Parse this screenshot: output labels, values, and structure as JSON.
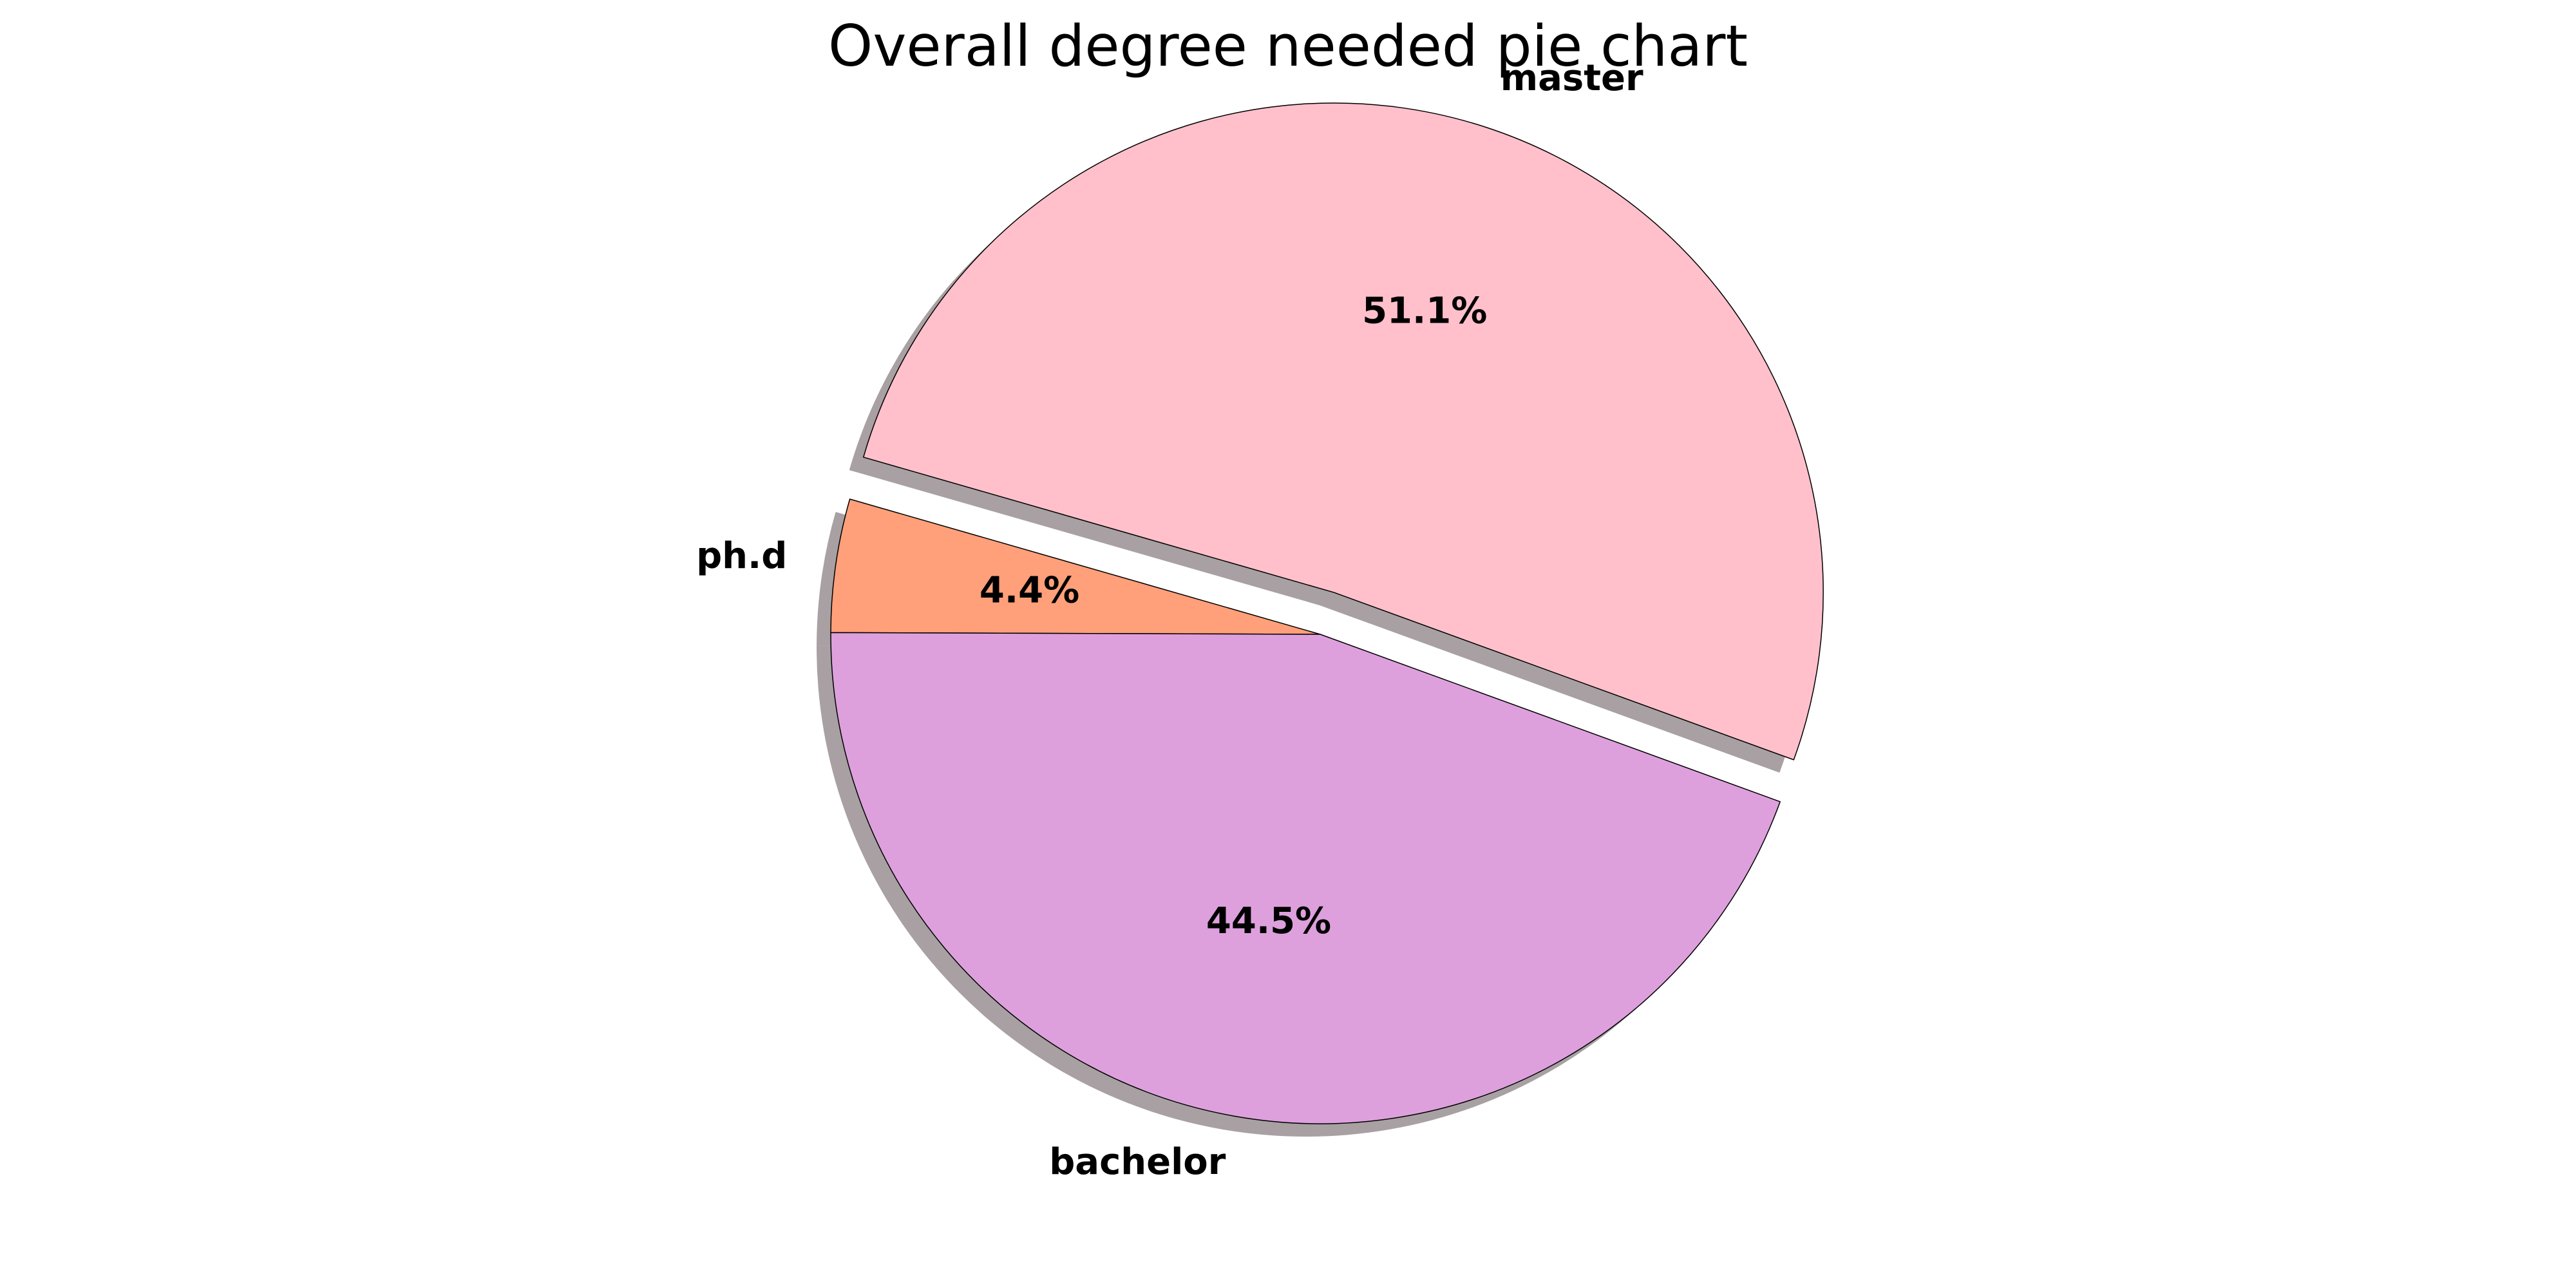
{
  "chart_data": {
    "type": "pie",
    "title": "Overall degree needed pie chart",
    "slices": [
      {
        "name": "master",
        "value": 51.1,
        "pct_label": "51.1%",
        "color": "#FFC0CB",
        "exploded": true
      },
      {
        "name": "ph.d",
        "value": 4.4,
        "pct_label": "4.4%",
        "color": "#FFA07A",
        "exploded": false
      },
      {
        "name": "bachelor",
        "value": 44.5,
        "pct_label": "44.5%",
        "color": "#DDA0DD",
        "exploded": false
      }
    ],
    "shadow": true,
    "edge_color": "#000000",
    "shadow_color": "#a8a0a2"
  }
}
